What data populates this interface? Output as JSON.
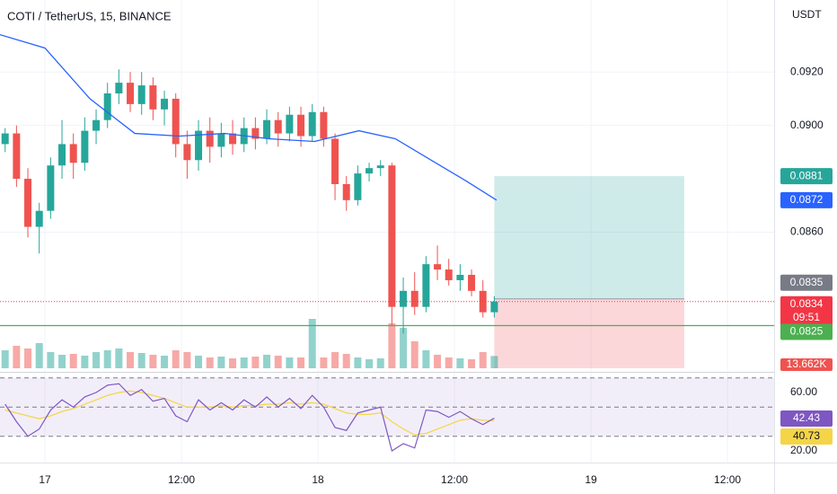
{
  "chart_data": {
    "type": "candlestick",
    "title": "COTI / TetherUS, 15, BINANCE",
    "currency": "USDT",
    "up_color": "#26a69a",
    "down_color": "#ef5350",
    "x": [
      -3.5,
      -2.5,
      -1.5,
      -0.5,
      0.5,
      1.5,
      2.5,
      3.5,
      4.5,
      5.5,
      6.5,
      7.5,
      8.5,
      9.5,
      10.5,
      11.5,
      12.5,
      13.5,
      14.5,
      15.5,
      16.5,
      17.5,
      18.5,
      19.5,
      20.5,
      21.5,
      22.5,
      23.5,
      24.5,
      25.5,
      26.5,
      27.5,
      28.5,
      29.5,
      30.5,
      31.5,
      32.5,
      33.5,
      34.5,
      35.5,
      36.5,
      37.5,
      38.5,
      39.5
    ],
    "open": [
      0.0893,
      0.0897,
      0.088,
      0.0862,
      0.0868,
      0.0885,
      0.0893,
      0.0886,
      0.0898,
      0.0902,
      0.0912,
      0.0916,
      0.0908,
      0.0915,
      0.0906,
      0.091,
      0.0893,
      0.0887,
      0.0898,
      0.0892,
      0.0897,
      0.0893,
      0.0899,
      0.0895,
      0.0902,
      0.0897,
      0.0904,
      0.0896,
      0.0905,
      0.0895,
      0.0878,
      0.0872,
      0.0882,
      0.0884,
      0.0885,
      0.0832,
      0.0838,
      0.0832,
      0.0848,
      0.0846,
      0.0842,
      0.0844,
      0.0838,
      0.083
    ],
    "high": [
      0.0899,
      0.09,
      0.0884,
      0.0871,
      0.0888,
      0.0902,
      0.0897,
      0.0903,
      0.0906,
      0.0916,
      0.0921,
      0.092,
      0.092,
      0.0918,
      0.0913,
      0.0912,
      0.0898,
      0.0902,
      0.0903,
      0.0901,
      0.0902,
      0.0903,
      0.0903,
      0.0906,
      0.0905,
      0.0907,
      0.0907,
      0.0908,
      0.0907,
      0.0897,
      0.0881,
      0.0885,
      0.0886,
      0.0887,
      0.0886,
      0.0843,
      0.0845,
      0.0851,
      0.0855,
      0.085,
      0.0848,
      0.0846,
      0.0842,
      0.0836
    ],
    "low": [
      0.089,
      0.0877,
      0.0858,
      0.0852,
      0.0865,
      0.088,
      0.088,
      0.0883,
      0.0893,
      0.0899,
      0.0908,
      0.0905,
      0.0904,
      0.0902,
      0.09,
      0.0888,
      0.088,
      0.0883,
      0.0886,
      0.0888,
      0.0889,
      0.089,
      0.0891,
      0.0893,
      0.0892,
      0.0894,
      0.0892,
      0.0894,
      0.0892,
      0.0872,
      0.0868,
      0.087,
      0.0879,
      0.0881,
      0.0825,
      0.0822,
      0.0829,
      0.083,
      0.0842,
      0.084,
      0.0838,
      0.0836,
      0.0828,
      0.0828
    ],
    "close": [
      0.0897,
      0.088,
      0.0862,
      0.0868,
      0.0885,
      0.0893,
      0.0886,
      0.0898,
      0.0902,
      0.0912,
      0.0916,
      0.0908,
      0.0915,
      0.0906,
      0.091,
      0.0893,
      0.0887,
      0.0898,
      0.0892,
      0.0897,
      0.0893,
      0.0899,
      0.0895,
      0.0902,
      0.0897,
      0.0904,
      0.0896,
      0.0905,
      0.0895,
      0.0878,
      0.0872,
      0.0882,
      0.0884,
      0.0885,
      0.0832,
      0.0838,
      0.0832,
      0.0848,
      0.0846,
      0.0842,
      0.0844,
      0.0838,
      0.083,
      0.0834
    ],
    "volume": [
      20,
      25,
      22,
      28,
      18,
      15,
      16,
      14,
      18,
      20,
      22,
      18,
      17,
      15,
      14,
      20,
      18,
      14,
      12,
      13,
      11,
      12,
      13,
      15,
      14,
      12,
      12,
      55,
      12,
      18,
      16,
      12,
      10,
      11,
      50,
      45,
      30,
      20,
      15,
      12,
      11,
      10,
      18,
      13.662
    ],
    "volume_lim": [
      0,
      60
    ],
    "volume_last_label": "13.662K",
    "xlim": [
      -3.95,
      64.1
    ],
    "xticks": [
      {
        "value": 0,
        "label": "17"
      },
      {
        "value": 12,
        "label": "12:00"
      },
      {
        "value": 24,
        "label": "18"
      },
      {
        "value": 36,
        "label": "12:00"
      },
      {
        "value": 48,
        "label": "19"
      },
      {
        "value": 60,
        "label": "12:00"
      }
    ],
    "ylim": [
      0.0809,
      0.0947
    ],
    "yticks": [
      {
        "value": 0.086,
        "label": "0.0860"
      },
      {
        "value": 0.09,
        "label": "0.0900"
      },
      {
        "value": 0.092,
        "label": "0.0920"
      }
    ],
    "ma": {
      "color": "#2962ff",
      "x": [
        -3.95,
        0,
        3.95,
        7.9,
        11.84,
        15.8,
        19.7,
        23.7,
        27.6,
        30.8,
        33.95,
        37.1,
        39.7
      ],
      "values": [
        0.0934,
        0.0929,
        0.091,
        0.0897,
        0.0896,
        0.0897,
        0.0895,
        0.0894,
        0.0898,
        0.0895,
        0.0887,
        0.0879,
        0.0872
      ]
    },
    "position": {
      "x": [
        39.5,
        56.2
      ],
      "entry": 0.0835,
      "target": 0.0881,
      "stop": 0.0809
    },
    "hline": {
      "value": 0.0825,
      "color": "#4caf50"
    },
    "current": {
      "countdown": "09:51",
      "color": "#f23645"
    },
    "rsi": {
      "color": "#7e57c2",
      "ma_color": "#f5d547",
      "values": [
        52,
        40,
        30,
        35,
        48,
        55,
        50,
        57,
        60,
        65,
        66,
        58,
        62,
        54,
        56,
        44,
        40,
        55,
        48,
        53,
        48,
        55,
        50,
        57,
        50,
        56,
        49,
        58,
        50,
        36,
        34,
        46,
        48,
        50,
        20,
        25,
        22,
        48,
        47,
        43,
        47,
        42,
        38,
        42.43
      ],
      "ma": [
        48,
        46,
        44,
        42,
        44,
        47,
        49,
        52,
        55,
        58,
        60,
        61,
        60,
        58,
        56,
        53,
        50,
        50,
        50,
        51,
        50,
        51,
        51,
        52,
        52,
        53,
        52,
        53,
        52,
        49,
        46,
        45,
        45,
        46,
        40,
        35,
        31,
        32,
        35,
        38,
        41,
        42,
        41,
        40.73
      ],
      "ylim": [
        12,
        71.7
      ],
      "yticks": [
        {
          "value": 60,
          "label": "60.00"
        },
        {
          "value": 20,
          "label": "20.00"
        }
      ],
      "levels": [
        70,
        50,
        30
      ]
    }
  }
}
